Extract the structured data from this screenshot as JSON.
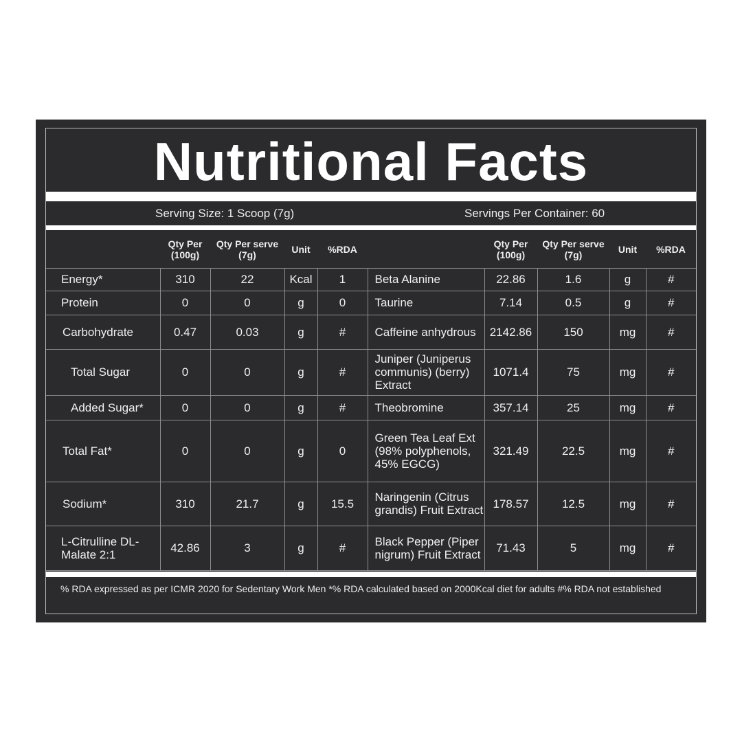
{
  "title": "Nutritional Facts",
  "serving_size": "Serving Size: 1 Scoop (7g)",
  "servings_per_container": "Servings Per Container: 60",
  "headers": {
    "qty_100g": "Qty Per (100g)",
    "qty_serve": "Qty Per serve (7g)",
    "unit": "Unit",
    "rda": "%RDA"
  },
  "left_rows": [
    {
      "name": "Energy*",
      "qty_100g": "310",
      "qty_serve": "22",
      "unit": "Kcal",
      "rda": "1"
    },
    {
      "name": "Protein",
      "qty_100g": "0",
      "qty_serve": "0",
      "unit": "g",
      "rda": "0"
    },
    {
      "name": "Carbohydrate",
      "qty_100g": "0.47",
      "qty_serve": "0.03",
      "unit": "g",
      "rda": "#"
    },
    {
      "name": "Total Sugar",
      "qty_100g": "0",
      "qty_serve": "0",
      "unit": "g",
      "rda": "#"
    },
    {
      "name": "Added Sugar*",
      "qty_100g": "0",
      "qty_serve": "0",
      "unit": "g",
      "rda": "#"
    },
    {
      "name": "Total Fat*",
      "qty_100g": "0",
      "qty_serve": "0",
      "unit": "g",
      "rda": "0"
    },
    {
      "name": "Sodium*",
      "qty_100g": "310",
      "qty_serve": "21.7",
      "unit": "g",
      "rda": "15.5"
    },
    {
      "name": "L-Citrulline DL-Malate 2:1",
      "qty_100g": "42.86",
      "qty_serve": "3",
      "unit": "g",
      "rda": "#"
    }
  ],
  "right_rows": [
    {
      "name": "Beta Alanine",
      "qty_100g": "22.86",
      "qty_serve": "1.6",
      "unit": "g",
      "rda": "#"
    },
    {
      "name": "Taurine",
      "qty_100g": "7.14",
      "qty_serve": "0.5",
      "unit": "g",
      "rda": "#"
    },
    {
      "name": "Caffeine anhydrous",
      "qty_100g": "2142.86",
      "qty_serve": "150",
      "unit": "mg",
      "rda": "#"
    },
    {
      "name": "Juniper (Juniperus communis) (berry) Extract",
      "qty_100g": "1071.4",
      "qty_serve": "75",
      "unit": "mg",
      "rda": "#"
    },
    {
      "name": "Theobromine",
      "qty_100g": "357.14",
      "qty_serve": "25",
      "unit": "mg",
      "rda": "#"
    },
    {
      "name": "Green Tea Leaf Ext (98% polyphenols, 45% EGCG)",
      "qty_100g": "321.49",
      "qty_serve": "22.5",
      "unit": "mg",
      "rda": "#"
    },
    {
      "name": "Naringenin (Citrus grandis) Fruit Extract",
      "qty_100g": "178.57",
      "qty_serve": "12.5",
      "unit": "mg",
      "rda": "#"
    },
    {
      "name": "Black Pepper (Piper nigrum) Fruit Extract",
      "qty_100g": "71.43",
      "qty_serve": "5",
      "unit": "mg",
      "rda": "#"
    }
  ],
  "footnote": "% RDA expressed as per ICMR 2020 for Sedentary Work Men  *% RDA calculated based on 2000Kcal diet for adults  #% RDA not established",
  "colors": {
    "background": "#2b2a2c",
    "text": "#f2f2f2",
    "divider": "#ffffff"
  }
}
